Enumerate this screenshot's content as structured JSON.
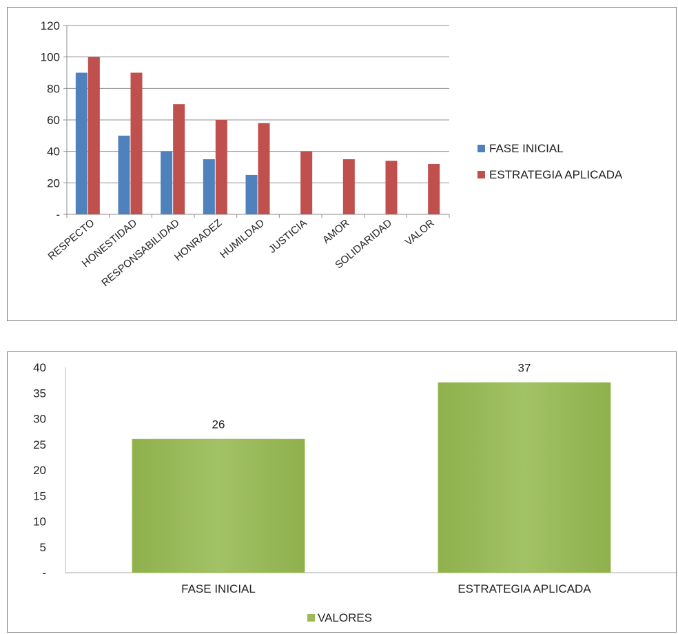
{
  "chart_data": [
    {
      "type": "bar",
      "title": "",
      "xlabel": "",
      "ylabel": "",
      "ylim": [
        0,
        120
      ],
      "yticks": [
        "-",
        "20",
        "40",
        "60",
        "80",
        "100",
        "120"
      ],
      "grid": true,
      "legend_position": "right",
      "categories": [
        "RESPECTO",
        "HONESTIDAD",
        "RESPONSABILIDAD",
        "HONRADEZ",
        "HUMILDAD",
        "JUSTICIA",
        "AMOR",
        "SOLIDARIDAD",
        "VALOR"
      ],
      "series": [
        {
          "name": "FASE INICIAL",
          "color": "#4f81bd",
          "values": [
            90,
            50,
            40,
            35,
            25,
            0,
            0,
            0,
            0
          ]
        },
        {
          "name": "ESTRATEGIA APLICADA",
          "color": "#c0504d",
          "values": [
            100,
            90,
            70,
            60,
            58,
            40,
            35,
            34,
            32
          ]
        }
      ]
    },
    {
      "type": "bar",
      "title": "",
      "xlabel": "",
      "ylabel": "",
      "ylim": [
        0,
        40
      ],
      "yticks": [
        "-",
        "5",
        "10",
        "15",
        "20",
        "25",
        "30",
        "35",
        "40"
      ],
      "grid": false,
      "legend_position": "bottom",
      "categories": [
        "FASE INICIAL",
        "ESTRATEGIA APLICADA"
      ],
      "series": [
        {
          "name": "VALORES",
          "color": "#9bbb59",
          "values": [
            26,
            37
          ]
        }
      ],
      "data_labels": [
        "26",
        "37"
      ]
    }
  ]
}
